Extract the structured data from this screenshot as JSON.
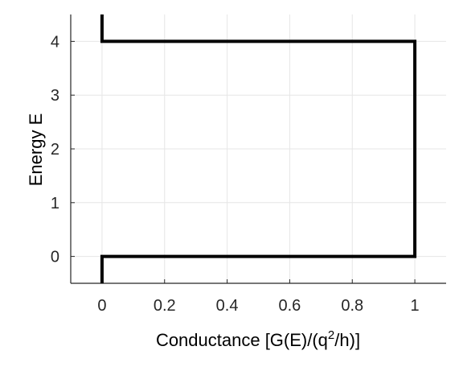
{
  "chart_data": {
    "type": "line",
    "title": "",
    "xlabel_main": "Conductance   [G(E)/(q",
    "xlabel_sup": "2",
    "xlabel_end": "/h)]",
    "ylabel": "Energy E",
    "xlim": [
      -0.1,
      1.1
    ],
    "ylim": [
      -0.5,
      4.5
    ],
    "xticks": [
      0,
      0.2,
      0.4,
      0.6,
      0.8,
      1
    ],
    "xtick_labels": [
      "0",
      "0.2",
      "0.4",
      "0.6",
      "0.8",
      "1"
    ],
    "yticks": [
      0,
      1,
      2,
      3,
      4
    ],
    "ytick_labels": [
      "0",
      "1",
      "2",
      "3",
      "4"
    ],
    "grid": true,
    "series": [
      {
        "color": "#000000",
        "x": [
          0,
          0,
          1,
          1,
          0,
          0
        ],
        "y": [
          -0.5,
          0,
          0,
          4,
          4,
          4.5
        ]
      }
    ]
  }
}
